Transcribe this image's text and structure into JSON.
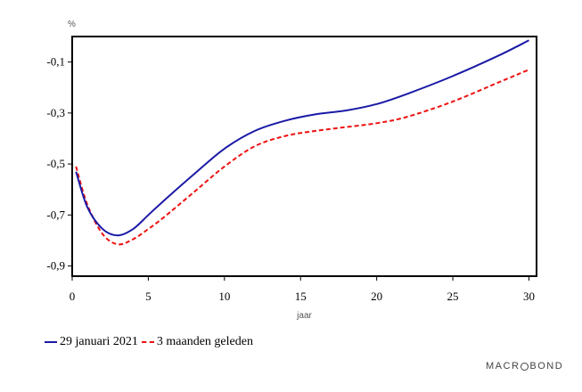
{
  "chart_data": {
    "type": "line",
    "unit_label": "%",
    "xlabel": "jaar",
    "ylabel": "",
    "xlim": [
      0,
      30.5
    ],
    "ylim": [
      -0.94,
      0.0
    ],
    "x_ticks": [
      0,
      5,
      10,
      15,
      20,
      25,
      30
    ],
    "x_tick_labels": [
      "0",
      "5",
      "10",
      "15",
      "20",
      "25",
      "30"
    ],
    "y_ticks": [
      -0.1,
      -0.3,
      -0.5,
      -0.7,
      -0.9
    ],
    "y_tick_labels": [
      "-0,1",
      "-0,3",
      "-0,5",
      "-0,7",
      "-0,9"
    ],
    "grid": false,
    "legend_position": "bottom-left",
    "series": [
      {
        "name": "29 januari 2021",
        "color": "#1a1aa6",
        "style": "solid",
        "x": [
          0.25,
          1,
          2,
          3,
          4,
          5,
          6,
          8,
          10,
          12,
          14,
          16,
          18,
          20,
          22,
          25,
          28,
          30
        ],
        "y": [
          -0.53,
          -0.67,
          -0.755,
          -0.78,
          -0.755,
          -0.7,
          -0.645,
          -0.54,
          -0.44,
          -0.37,
          -0.33,
          -0.305,
          -0.29,
          -0.265,
          -0.225,
          -0.155,
          -0.075,
          -0.015
        ]
      },
      {
        "name": "3 maanden geleden",
        "color": "#ee1111",
        "style": "dashed",
        "x": [
          0.25,
          1,
          2,
          3,
          4,
          5,
          6,
          8,
          10,
          12,
          14,
          16,
          18,
          20,
          22,
          25,
          28,
          30
        ],
        "y": [
          -0.51,
          -0.66,
          -0.775,
          -0.815,
          -0.795,
          -0.755,
          -0.71,
          -0.61,
          -0.51,
          -0.43,
          -0.39,
          -0.37,
          -0.355,
          -0.34,
          -0.315,
          -0.255,
          -0.18,
          -0.13
        ]
      }
    ]
  },
  "legend": {
    "items": [
      {
        "label": "29 januari 2021"
      },
      {
        "label": "3 maanden geleden"
      }
    ]
  },
  "brand": {
    "left": "MACR",
    "right": "BOND"
  }
}
